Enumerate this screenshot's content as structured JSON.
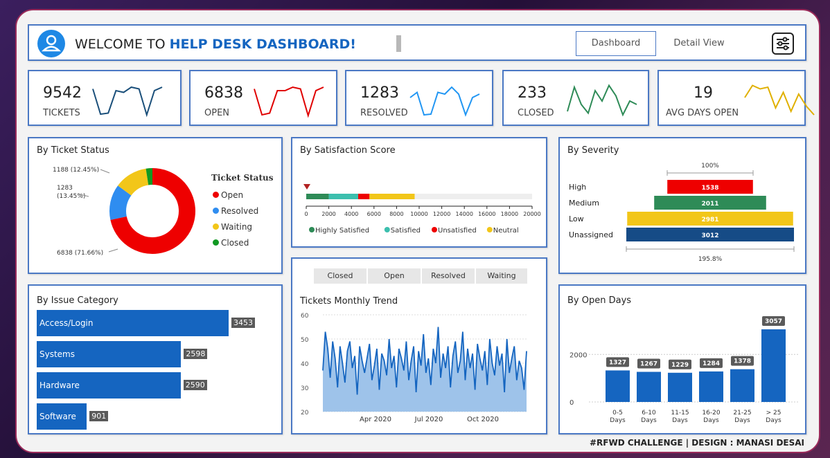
{
  "header": {
    "welcome": "WELCOME TO ",
    "welcome_em": "HELP DESK DASHBOARD!",
    "nav": [
      "Dashboard",
      "Detail View"
    ]
  },
  "kpis": [
    {
      "value": "9542",
      "label": "TICKETS",
      "color": "#1a4f7a",
      "spark": [
        0.85,
        0.12,
        0.15,
        0.8,
        0.75,
        0.9,
        0.85,
        0.1,
        0.8,
        0.9
      ]
    },
    {
      "value": "6838",
      "label": "OPEN",
      "color": "#e00000",
      "spark": [
        0.85,
        0.1,
        0.15,
        0.8,
        0.8,
        0.9,
        0.85,
        0.08,
        0.8,
        0.9
      ]
    },
    {
      "value": "1283",
      "label": "RESOLVED",
      "color": "#2196f3",
      "spark": [
        0.6,
        0.75,
        0.1,
        0.12,
        0.75,
        0.7,
        0.9,
        0.7,
        0.1,
        0.6,
        0.7
      ]
    },
    {
      "value": "233",
      "label": "CLOSED",
      "color": "#2e8b57",
      "spark": [
        0.2,
        0.9,
        0.4,
        0.15,
        0.8,
        0.5,
        0.95,
        0.65,
        0.1,
        0.5,
        0.4
      ]
    },
    {
      "value": "19",
      "label": "AVG DAYS OPEN",
      "color": "#e0b000",
      "spark": [
        0.6,
        0.95,
        0.85,
        0.9,
        0.3,
        0.75,
        0.2,
        0.7,
        0.35,
        0.1
      ]
    }
  ],
  "ticket_status": {
    "title": "By Ticket Status",
    "legend_title": "Ticket Status",
    "slices": [
      {
        "name": "Open",
        "value": 6838,
        "label": "6838 (71.66%)",
        "color": "#ee0000"
      },
      {
        "name": "Resolved",
        "value": 1283,
        "label": "1283\n(13.45%)",
        "color": "#2f8df0"
      },
      {
        "name": "Waiting",
        "value": 1188,
        "label": "1188 (12.45%)",
        "color": "#f2c619"
      },
      {
        "name": "Closed",
        "value": 233,
        "label": "",
        "color": "#119922"
      }
    ]
  },
  "satisfaction": {
    "title": "By Satisfaction Score",
    "ticks": [
      "0",
      "2000",
      "4000",
      "6000",
      "8000",
      "10000",
      "12000",
      "14000",
      "16000",
      "18000",
      "20000"
    ],
    "segments": [
      {
        "name": "Highly Satisfied",
        "value": 2000,
        "color": "#2e8b57"
      },
      {
        "name": "Satisfied",
        "value": 2600,
        "color": "#3cbfae"
      },
      {
        "name": "Unsatisfied",
        "value": 1000,
        "color": "#ee0000"
      },
      {
        "name": "Neutral",
        "value": 4000,
        "color": "#f2c619"
      }
    ],
    "max": 20000
  },
  "severity": {
    "title": "By Severity",
    "top_label": "100%",
    "bottom_label": "195.8%",
    "rows": [
      {
        "name": "High",
        "value": 1538,
        "color": "#ee0000"
      },
      {
        "name": "Medium",
        "value": 2011,
        "color": "#2e8b57"
      },
      {
        "name": "Low",
        "value": 2981,
        "color": "#f2c619"
      },
      {
        "name": "Unassigned",
        "value": 3012,
        "color": "#164b86"
      }
    ]
  },
  "issue_category": {
    "title": "By Issue Category",
    "rows": [
      {
        "name": "Access/Login",
        "value": 3453
      },
      {
        "name": "Systems",
        "value": 2598
      },
      {
        "name": "Hardware",
        "value": 2590
      },
      {
        "name": "Software",
        "value": 901
      }
    ]
  },
  "trend": {
    "filters": [
      "Closed",
      "Open",
      "Resolved",
      "Waiting"
    ],
    "title": "Tickets Monthly Trend",
    "yticks": [
      "60",
      "50",
      "40",
      "30",
      "20"
    ],
    "xticks": [
      "Apr 2020",
      "Jul 2020",
      "Oct 2020"
    ]
  },
  "open_days": {
    "title": "By Open Days",
    "yticks": [
      "2000",
      "0"
    ],
    "bars": [
      {
        "label": "0-5\nDays",
        "value": 1327
      },
      {
        "label": "6-10\nDays",
        "value": 1267
      },
      {
        "label": "11-15\nDays",
        "value": 1229
      },
      {
        "label": "16-20\nDays",
        "value": 1284
      },
      {
        "label": "21-25\nDays",
        "value": 1378
      },
      {
        "label": "> 25\nDays",
        "value": 3057
      }
    ]
  },
  "footer": "#RFWD CHALLENGE | DESIGN : MANASI DESAI",
  "chart_data": [
    {
      "type": "pie",
      "title": "By Ticket Status",
      "categories": [
        "Open",
        "Resolved",
        "Waiting",
        "Closed"
      ],
      "values": [
        6838,
        1283,
        1188,
        233
      ]
    },
    {
      "type": "bar",
      "title": "By Satisfaction Score",
      "categories": [
        "Highly Satisfied",
        "Satisfied",
        "Unsatisfied",
        "Neutral"
      ],
      "values": [
        2000,
        2600,
        1000,
        4000
      ],
      "xlim": [
        0,
        20000
      ]
    },
    {
      "type": "bar",
      "title": "By Severity",
      "categories": [
        "High",
        "Medium",
        "Low",
        "Unassigned"
      ],
      "values": [
        1538,
        2011,
        2981,
        3012
      ]
    },
    {
      "type": "bar",
      "title": "By Issue Category",
      "categories": [
        "Access/Login",
        "Systems",
        "Hardware",
        "Software"
      ],
      "values": [
        3453,
        2598,
        2590,
        901
      ]
    },
    {
      "type": "area",
      "title": "Tickets Monthly Trend",
      "ylim": [
        20,
        60
      ],
      "xticks": [
        "Apr 2020",
        "Jul 2020",
        "Oct 2020"
      ],
      "values": [
        37,
        53,
        46,
        34,
        49,
        42,
        30,
        47,
        40,
        32,
        45,
        49,
        38,
        43,
        27,
        47,
        41,
        36,
        42,
        48,
        33,
        39,
        46,
        29,
        44,
        41,
        35,
        50,
        38,
        43,
        30,
        46,
        42,
        37,
        49,
        33,
        41,
        47,
        28,
        45,
        39,
        52,
        36,
        42,
        31,
        46,
        40,
        55,
        34,
        44,
        38,
        47,
        30,
        43,
        49,
        36,
        41,
        53,
        33,
        46,
        38,
        44,
        29,
        48,
        42,
        37,
        45,
        31,
        50,
        40,
        35,
        47,
        39,
        44,
        28,
        50,
        36,
        42,
        47,
        33,
        41,
        38,
        29,
        45
      ]
    },
    {
      "type": "bar",
      "title": "By Open Days",
      "categories": [
        "0-5 Days",
        "6-10 Days",
        "11-15 Days",
        "16-20 Days",
        "21-25 Days",
        "> 25 Days"
      ],
      "values": [
        1327,
        1267,
        1229,
        1284,
        1378,
        3057
      ]
    }
  ]
}
